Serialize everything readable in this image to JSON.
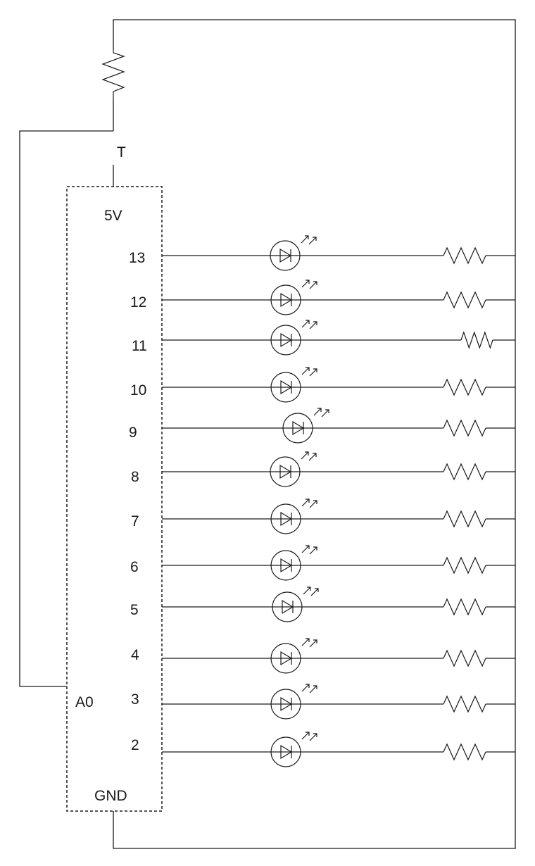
{
  "labels": {
    "sensor": "T",
    "power": "5V",
    "analog": "A0",
    "ground": "GND"
  },
  "pins": [
    "13",
    "12",
    "11",
    "10",
    "9",
    "8",
    "7",
    "6",
    "5",
    "4",
    "3",
    "2"
  ]
}
